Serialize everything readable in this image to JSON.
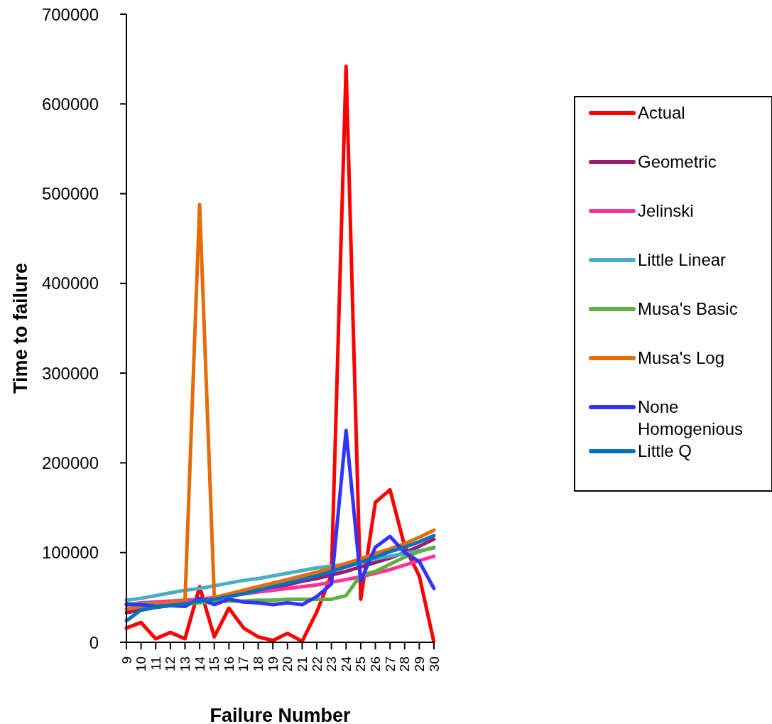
{
  "chart_data": {
    "type": "line",
    "xlabel": "Failure Number",
    "ylabel": "Time to failure",
    "categories": [
      "9",
      "10",
      "11",
      "12",
      "13",
      "14",
      "15",
      "16",
      "17",
      "18",
      "19",
      "20",
      "21",
      "22",
      "23",
      "24",
      "25",
      "26",
      "27",
      "28",
      "29",
      "30"
    ],
    "ylim": [
      0,
      700000
    ],
    "yticks": [
      0,
      100000,
      200000,
      300000,
      400000,
      500000,
      600000,
      700000
    ],
    "grid": false,
    "legend": "top right",
    "marker": "none",
    "line_style": "solid",
    "series": [
      {
        "name": "Actual",
        "color": "#ff0000",
        "values": [
          16000,
          22000,
          4000,
          11000,
          4000,
          62000,
          6000,
          38000,
          16000,
          6000,
          2000,
          10000,
          1000,
          34000,
          75000,
          642000,
          48000,
          156000,
          170000,
          107000,
          74000,
          0
        ]
      },
      {
        "name": "Geometric",
        "color": "#9c1b6e",
        "values": [
          33000,
          36000,
          39000,
          41000,
          43000,
          46000,
          49000,
          52000,
          55000,
          58000,
          61000,
          64000,
          68000,
          71000,
          75000,
          79000,
          84000,
          89000,
          94000,
          100000,
          107000,
          115000
        ]
      },
      {
        "name": "Jelinski",
        "color": "#ff3399",
        "values": [
          42000,
          44000,
          45000,
          46000,
          47000,
          48000,
          50000,
          52000,
          54000,
          56000,
          58000,
          60000,
          62000,
          64000,
          67000,
          70000,
          73000,
          77000,
          81000,
          86000,
          91000,
          96000
        ]
      },
      {
        "name": "Little Linear",
        "color": "#4bacc6",
        "values": [
          47000,
          49000,
          52000,
          55000,
          58000,
          60000,
          63000,
          66000,
          69000,
          71000,
          74000,
          77000,
          80000,
          83000,
          85000,
          87000,
          90000,
          93000,
          96000,
          99000,
          102000,
          105000
        ]
      },
      {
        "name": "Musa's Basic",
        "color": "#5eb13e",
        "values": [
          43000,
          43000,
          43000,
          43000,
          43000,
          44000,
          45000,
          46000,
          46000,
          47000,
          47000,
          48000,
          48000,
          48000,
          48000,
          52000,
          75000,
          79000,
          87000,
          95000,
          101000,
          106000
        ]
      },
      {
        "name": "Musa's Log",
        "color": "#e46c0a",
        "values": [
          37000,
          40000,
          42000,
          44000,
          46000,
          488000,
          50000,
          54000,
          58000,
          62000,
          66000,
          70000,
          74000,
          78000,
          83000,
          88000,
          93000,
          99000,
          104000,
          110000,
          117000,
          125000
        ]
      },
      {
        "name": "None Homogenious",
        "color": "#3333ff",
        "values": [
          42000,
          42000,
          40000,
          41000,
          40000,
          49000,
          42000,
          48000,
          45000,
          44000,
          42000,
          44000,
          42000,
          51000,
          65000,
          236000,
          68000,
          106000,
          118000,
          100000,
          90000,
          60000
        ]
      },
      {
        "name": "Little Q",
        "color": "#0070c0",
        "values": [
          24000,
          36000,
          39000,
          41000,
          43000,
          46000,
          48000,
          51000,
          54000,
          58000,
          62000,
          66000,
          70000,
          74000,
          79000,
          84000,
          89000,
          95000,
          101000,
          106000,
          112000,
          119000
        ]
      }
    ]
  }
}
